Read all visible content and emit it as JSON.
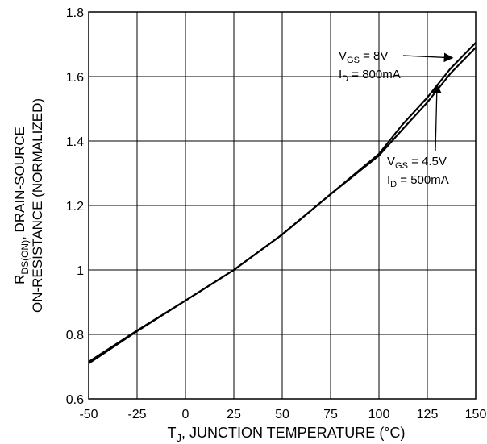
{
  "chart_data": {
    "type": "line",
    "xlabel": {
      "main": "T",
      "sub": "J",
      "rest": ", JUNCTION TEMPERATURE (°C)"
    },
    "ylabel": {
      "line1_main": "R",
      "line1_sub": "DS(ON)",
      "line1_rest": ", DRAIN-SOURCE",
      "line2": "ON-RESISTANCE (NORMALIZED)"
    },
    "xlim": [
      -50,
      150
    ],
    "ylim": [
      0.6,
      1.8
    ],
    "x_ticks": [
      -50,
      -25,
      0,
      25,
      50,
      75,
      100,
      125,
      150
    ],
    "x_tick_labels": [
      "-50",
      "-25",
      "0",
      "25",
      "50",
      "75",
      "100",
      "125",
      "150"
    ],
    "y_ticks": [
      0.6,
      0.8,
      1.0,
      1.2,
      1.4,
      1.6,
      1.8
    ],
    "y_tick_labels": [
      "0.6",
      "0.8",
      "1",
      "1.2",
      "1.4",
      "1.6",
      "1.8"
    ],
    "grid": true,
    "series": [
      {
        "x": [
          -50,
          -25,
          0,
          25,
          50,
          75,
          100,
          112,
          125,
          137,
          150
        ],
        "values": [
          0.71,
          0.81,
          0.905,
          1.0,
          1.11,
          1.235,
          1.36,
          1.45,
          1.535,
          1.625,
          1.705
        ]
      },
      {
        "x": [
          -50,
          -25,
          0,
          25,
          50,
          75,
          100,
          112,
          125,
          137,
          150
        ],
        "values": [
          0.715,
          0.812,
          0.905,
          1.0,
          1.11,
          1.235,
          1.355,
          1.435,
          1.52,
          1.61,
          1.69
        ]
      }
    ],
    "annotations": [
      {
        "line1": {
          "main": "V",
          "sub": "GS",
          "rest": " = 8V"
        },
        "line2": {
          "main": "I",
          "sub": "D",
          "rest": " = 800mA"
        },
        "arrow_to": [
          138,
          1.658
        ]
      },
      {
        "line1": {
          "main": "V",
          "sub": "GS",
          "rest": " = 4.5V"
        },
        "line2": {
          "main": "I",
          "sub": "D",
          "rest": " = 500mA"
        },
        "arrow_to": [
          130,
          1.575
        ]
      }
    ]
  }
}
